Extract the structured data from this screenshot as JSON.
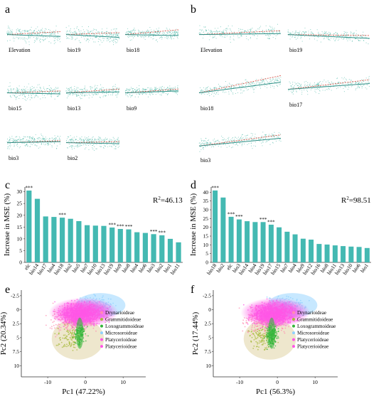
{
  "colors": {
    "teal": "#4fb9a8",
    "teal_light": "#9fd9cc",
    "red_dashed": "#e05a4f",
    "bar": "#44b9b2",
    "pca_magenta": "#ff55e6",
    "pca_cyan": "#8fd2ff",
    "pca_green": "#34b53a",
    "pca_olive": "#a7b93b",
    "pca_beige": "#e0d3a4",
    "pca_pink": "#ff8db0"
  },
  "panels": {
    "a": {
      "letter": "a",
      "labels": [
        "Elevation",
        "bio19",
        "bio18",
        "bio15",
        "bio13",
        "bio9",
        "bio3",
        "bio2"
      ]
    },
    "b": {
      "letter": "b",
      "labels": [
        "Elevation",
        "bio19",
        "bio18",
        "bio17",
        "bio3"
      ]
    },
    "c": {
      "letter": "c",
      "r2_prefix": "R",
      "r2_sup": "2",
      "r2_value": "=46.13",
      "ylabel": "Increase in MSE (%)",
      "yticks": [
        "0",
        "5",
        "10",
        "15",
        "20",
        "25",
        "30"
      ]
    },
    "d": {
      "letter": "d",
      "r2_prefix": "R",
      "r2_sup": "2",
      "r2_value": "=98.51",
      "ylabel": "Increase in MSE (%)",
      "yticks": [
        "0",
        "5",
        "10",
        "15",
        "20",
        "25",
        "30",
        "35",
        "40"
      ]
    },
    "e": {
      "letter": "e",
      "xlabel": "Pc1 (47.22%)",
      "ylabel": "Pc2 (20.34%)",
      "xticks": [
        "-10",
        "0",
        "10"
      ],
      "yticks": [
        "-2.5",
        "0",
        "2.5",
        "5",
        "7.5",
        "10"
      ],
      "legend": [
        "Drynarioideae",
        "Grammitidoideae",
        "Loxogrammoideae",
        "Microsoroideae",
        "Platycerioideae",
        "Platycerioideae"
      ]
    },
    "f": {
      "letter": "f",
      "xlabel": "Pc1 (56.3%)",
      "ylabel": "Pc2 (17.44%)",
      "xticks": [
        "-10",
        "0",
        "10"
      ],
      "yticks": [
        "-2.5",
        "0",
        "2.5",
        "5",
        "7.5",
        "10"
      ],
      "legend": [
        "Drynarioideae",
        "Grammitidoideae",
        "Loxogrammoideae",
        "Microsoroideae",
        "Platycerioideae",
        "Platycerioideae"
      ]
    }
  },
  "chart_data": [
    {
      "type": "bar",
      "panel": "c",
      "categories": [
        "elc",
        "bio14",
        "bio17",
        "bio4",
        "bio18",
        "bio2",
        "bio5",
        "bio7",
        "bio10",
        "bio13",
        "bio19",
        "bio9",
        "bio8",
        "bio4",
        "bio6",
        "bio3",
        "bio2",
        "bio1",
        "bio11"
      ],
      "values": [
        30.5,
        27,
        19.5,
        19.3,
        19,
        18.5,
        17.5,
        15.8,
        15.6,
        15.5,
        14.8,
        14.2,
        14,
        12.8,
        12.5,
        12,
        11.5,
        10,
        8.5
      ],
      "significant": [
        true,
        false,
        false,
        false,
        true,
        false,
        false,
        false,
        false,
        false,
        true,
        true,
        true,
        false,
        false,
        true,
        true,
        false,
        false
      ],
      "ylabel": "Increase in MSE (%)",
      "ylim": [
        0,
        32
      ]
    },
    {
      "type": "bar",
      "panel": "d",
      "categories": [
        "bio18",
        "bio2",
        "elc",
        "bio3",
        "bio14",
        "bio4",
        "bio19",
        "bio17",
        "bio15",
        "bio7",
        "bio4",
        "bio9",
        "bio12",
        "bio16",
        "bio8",
        "bio11",
        "bio13",
        "bio10",
        "bio6",
        "bio1"
      ],
      "values": [
        41,
        37,
        26,
        24.5,
        23.5,
        23,
        23,
        21.5,
        20,
        17.5,
        16,
        13.5,
        13,
        10.5,
        10.2,
        9.7,
        9.3,
        9,
        8.8,
        8.2
      ],
      "significant": [
        true,
        false,
        true,
        true,
        false,
        false,
        true,
        true,
        false,
        false,
        false,
        false,
        false,
        false,
        false,
        false,
        false,
        false,
        false,
        false
      ],
      "ylabel": "Increase in MSE (%)",
      "ylim": [
        0,
        43
      ]
    }
  ]
}
